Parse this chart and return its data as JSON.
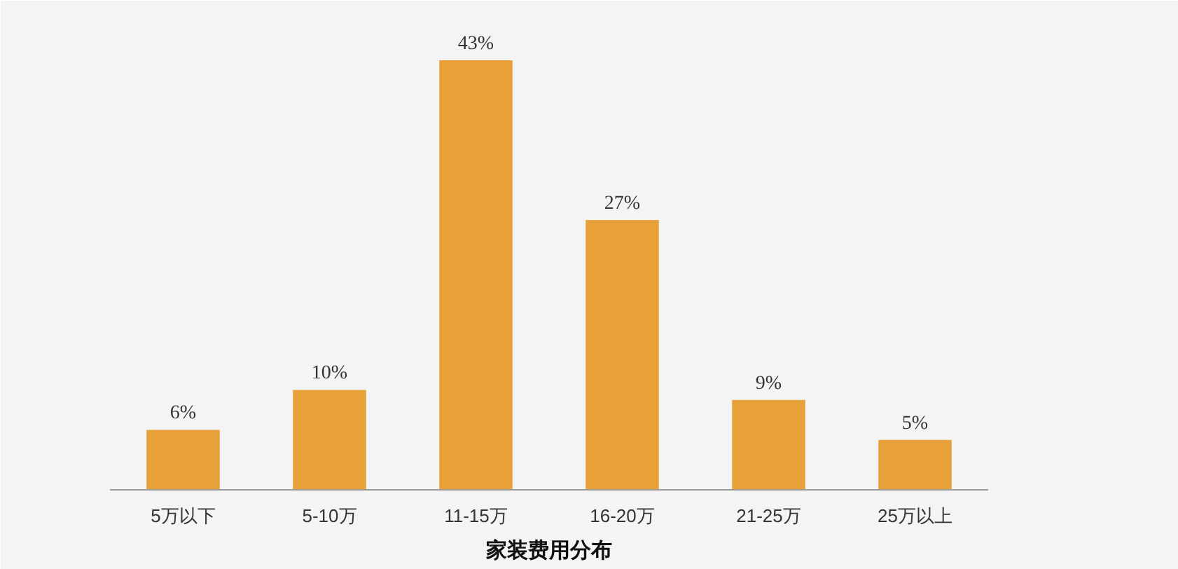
{
  "chart_data": {
    "type": "bar",
    "title": "家装费用分布",
    "categories": [
      "5万以下",
      "5-10万",
      "11-15万",
      "16-20万",
      "21-25万",
      "25万以上"
    ],
    "values": [
      6,
      10,
      43,
      27,
      9,
      5
    ],
    "value_labels": [
      "6%",
      "10%",
      "43%",
      "27%",
      "9%",
      "5%"
    ],
    "color": "#e8a038",
    "grid": false
  }
}
